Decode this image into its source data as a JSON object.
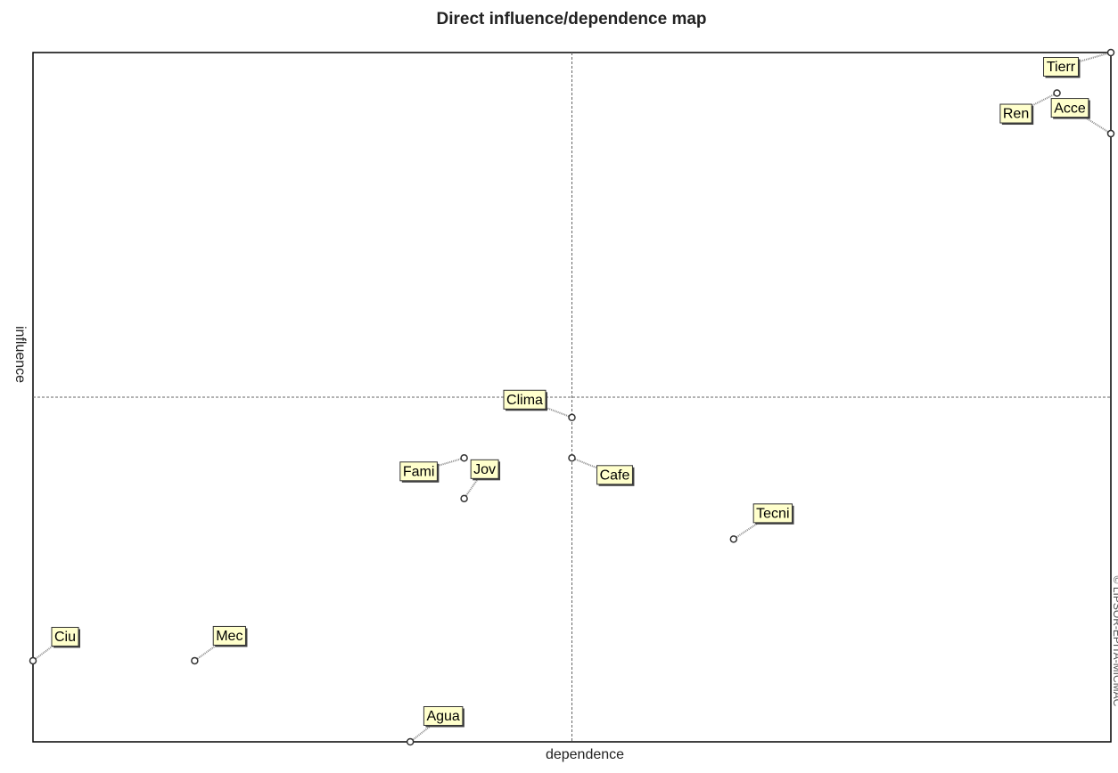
{
  "chart_data": {
    "type": "scatter",
    "title": "Direct influence/dependence map",
    "x_label": "dependence",
    "y_label": "influence",
    "credit": "© LIPSOR-EPITA-MICMAC",
    "labels": [
      "Tierr",
      "Acce",
      "Ren",
      "Clima",
      "Cafe",
      "Fami",
      "Jov",
      "Tecni",
      "Ciu",
      "Mec",
      "Agua"
    ],
    "x": [
      20,
      20,
      19,
      10,
      10,
      8,
      8,
      13,
      0,
      3,
      7
    ],
    "y": [
      17,
      15,
      16,
      8,
      7,
      7,
      6,
      5,
      2,
      2,
      0
    ],
    "xlim": [
      0,
      20
    ],
    "ylim": [
      0,
      17
    ],
    "xline": 10,
    "yline": 8.5,
    "color": "#ffffcc"
  }
}
